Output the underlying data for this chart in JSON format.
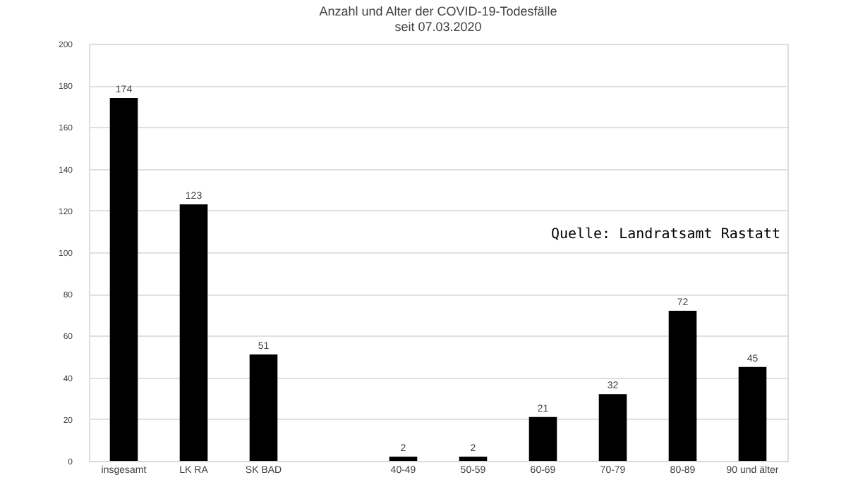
{
  "chart_data": {
    "type": "bar",
    "title": "Anzahl und Alter der COVID-19-Todesfälle",
    "subtitle": "seit 07.03.2020",
    "categories": [
      "insgesamt",
      "LK RA",
      "SK BAD",
      null,
      "40-49",
      "50-59",
      "60-69",
      "70-79",
      "80-89",
      "90 und älter"
    ],
    "values": [
      174,
      123,
      51,
      null,
      2,
      2,
      21,
      32,
      72,
      45
    ],
    "color": "#000000",
    "ylim": [
      0,
      200
    ],
    "yticks": [
      0,
      20,
      40,
      60,
      80,
      100,
      120,
      140,
      160,
      180,
      200
    ],
    "grid": "y",
    "data_labels": true,
    "annotations": [
      "Quelle: Landratsamt Rastatt"
    ]
  }
}
